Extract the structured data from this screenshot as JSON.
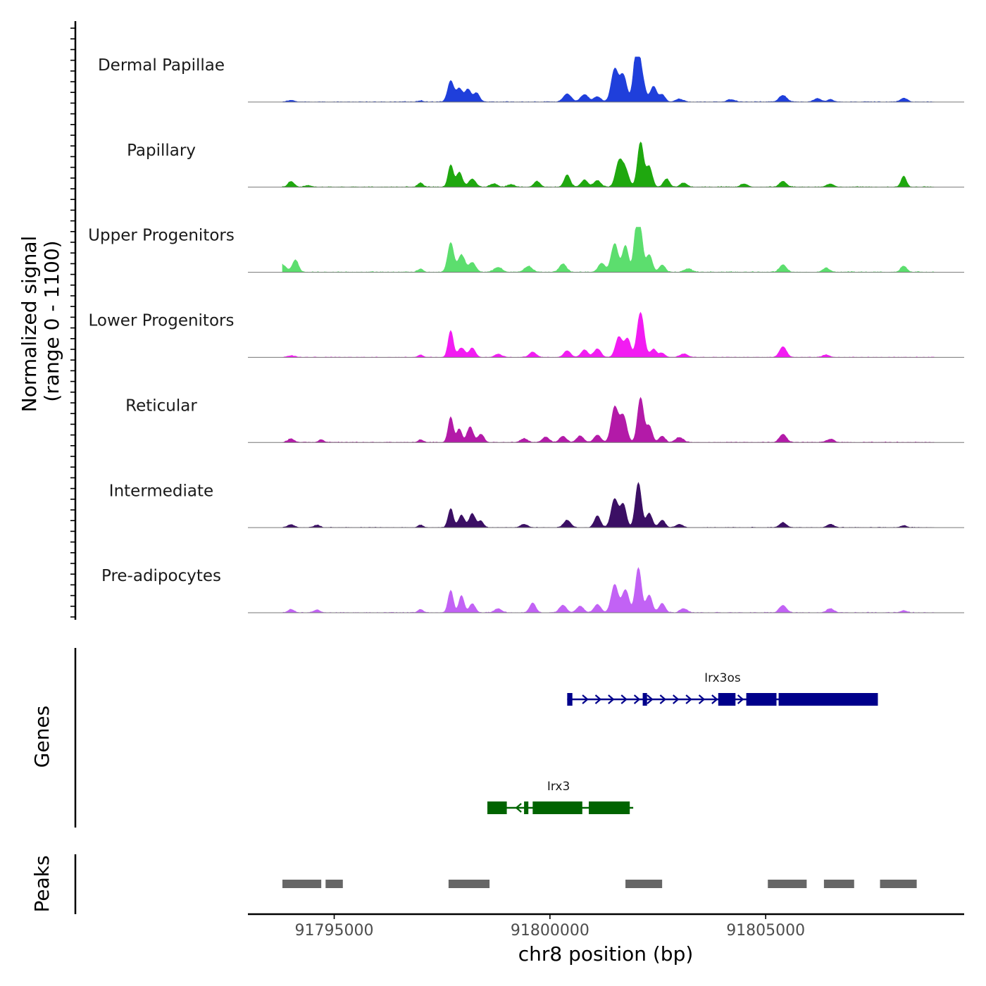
{
  "chart_data": {
    "type": "area",
    "chromosome": "chr8",
    "xlim": [
      91793000,
      91809600
    ],
    "xlabel": "chr8 position (bp)",
    "x_ticks": [
      91795000,
      91800000,
      91805000
    ],
    "x_tick_labels": [
      "91795000",
      "91800000",
      "91805000"
    ],
    "signal_panel": {
      "ylabel_line1": "Normalized signal",
      "ylabel_line2": "(range 0 - 1100)",
      "ylim": [
        0,
        1100
      ],
      "series": [
        {
          "name": "Dermal Papillae",
          "color": "#1f3fdb",
          "peaks": [
            [
              91794000,
              40,
              80
            ],
            [
              91797000,
              30,
              60
            ],
            [
              91797700,
              520,
              70
            ],
            [
              91797900,
              330,
              70
            ],
            [
              91798100,
              310,
              70
            ],
            [
              91798300,
              220,
              70
            ],
            [
              91800400,
              200,
              90
            ],
            [
              91800800,
              180,
              90
            ],
            [
              91801100,
              130,
              80
            ],
            [
              91801500,
              800,
              80
            ],
            [
              91801700,
              650,
              80
            ],
            [
              91802000,
              1000,
              70
            ],
            [
              91802100,
              700,
              90
            ],
            [
              91802400,
              380,
              70
            ],
            [
              91802600,
              180,
              70
            ],
            [
              91803000,
              70,
              90
            ],
            [
              91804200,
              60,
              90
            ],
            [
              91805400,
              160,
              90
            ],
            [
              91806200,
              80,
              90
            ],
            [
              91806500,
              60,
              70
            ],
            [
              91808200,
              90,
              80
            ]
          ],
          "noise": 18
        },
        {
          "name": "Papillary",
          "color": "#1fa80f",
          "peaks": [
            [
              91794000,
              140,
              70
            ],
            [
              91794400,
              40,
              70
            ],
            [
              91797000,
              100,
              60
            ],
            [
              91797700,
              540,
              60
            ],
            [
              91797900,
              360,
              70
            ],
            [
              91798200,
              200,
              80
            ],
            [
              91798700,
              80,
              80
            ],
            [
              91799100,
              60,
              80
            ],
            [
              91799700,
              140,
              70
            ],
            [
              91800400,
              300,
              70
            ],
            [
              91800800,
              170,
              80
            ],
            [
              91801100,
              160,
              80
            ],
            [
              91801600,
              600,
              80
            ],
            [
              91801750,
              400,
              80
            ],
            [
              91802100,
              1100,
              70
            ],
            [
              91802300,
              500,
              70
            ],
            [
              91802700,
              200,
              70
            ],
            [
              91803100,
              100,
              80
            ],
            [
              91804500,
              80,
              80
            ],
            [
              91805400,
              140,
              80
            ],
            [
              91806500,
              80,
              80
            ],
            [
              91808200,
              270,
              60
            ]
          ],
          "noise": 20
        },
        {
          "name": "Upper Progenitors",
          "color": "#5cde6e",
          "peaks": [
            [
              91793800,
              180,
              90
            ],
            [
              91794100,
              300,
              70
            ],
            [
              91797000,
              80,
              60
            ],
            [
              91797700,
              720,
              70
            ],
            [
              91797950,
              420,
              80
            ],
            [
              91798200,
              230,
              80
            ],
            [
              91798800,
              120,
              90
            ],
            [
              91799500,
              140,
              90
            ],
            [
              91800300,
              200,
              80
            ],
            [
              91801200,
              220,
              80
            ],
            [
              91801500,
              700,
              80
            ],
            [
              91801750,
              650,
              70
            ],
            [
              91802000,
              1000,
              60
            ],
            [
              91802100,
              900,
              60
            ],
            [
              91802300,
              430,
              70
            ],
            [
              91802600,
              180,
              70
            ],
            [
              91803200,
              80,
              90
            ],
            [
              91805400,
              180,
              80
            ],
            [
              91806400,
              100,
              80
            ],
            [
              91808200,
              150,
              70
            ]
          ],
          "noise": 24
        },
        {
          "name": "Lower Progenitors",
          "color": "#f21cf2",
          "peaks": [
            [
              91794000,
              40,
              80
            ],
            [
              91797000,
              60,
              60
            ],
            [
              91797700,
              650,
              60
            ],
            [
              91797950,
              230,
              80
            ],
            [
              91798200,
              230,
              70
            ],
            [
              91798800,
              80,
              80
            ],
            [
              91799600,
              130,
              80
            ],
            [
              91800400,
              160,
              80
            ],
            [
              91800800,
              180,
              80
            ],
            [
              91801100,
              210,
              80
            ],
            [
              91801600,
              500,
              80
            ],
            [
              91801800,
              450,
              70
            ],
            [
              91802100,
              1100,
              80
            ],
            [
              91802400,
              200,
              70
            ],
            [
              91802600,
              100,
              70
            ],
            [
              91803100,
              80,
              90
            ],
            [
              91805400,
              260,
              80
            ],
            [
              91806400,
              60,
              80
            ]
          ],
          "noise": 16
        },
        {
          "name": "Reticular",
          "color": "#b31aa8",
          "peaks": [
            [
              91794000,
              90,
              70
            ],
            [
              91794700,
              70,
              60
            ],
            [
              91797000,
              60,
              60
            ],
            [
              91797700,
              620,
              60
            ],
            [
              91797900,
              330,
              60
            ],
            [
              91798150,
              380,
              70
            ],
            [
              91798400,
              200,
              70
            ],
            [
              91799400,
              90,
              80
            ],
            [
              91799900,
              130,
              80
            ],
            [
              91800300,
              150,
              80
            ],
            [
              91800700,
              160,
              80
            ],
            [
              91801100,
              180,
              80
            ],
            [
              91801500,
              850,
              80
            ],
            [
              91801700,
              650,
              80
            ],
            [
              91802100,
              1100,
              70
            ],
            [
              91802300,
              400,
              70
            ],
            [
              91802600,
              150,
              70
            ],
            [
              91803000,
              120,
              90
            ],
            [
              91805400,
              200,
              80
            ],
            [
              91806500,
              80,
              80
            ]
          ],
          "noise": 20
        },
        {
          "name": "Intermediate",
          "color": "#3b0f64",
          "peaks": [
            [
              91794000,
              70,
              80
            ],
            [
              91794600,
              60,
              70
            ],
            [
              91797000,
              60,
              60
            ],
            [
              91797700,
              460,
              60
            ],
            [
              91797950,
              300,
              70
            ],
            [
              91798200,
              340,
              70
            ],
            [
              91798400,
              160,
              60
            ],
            [
              91799400,
              80,
              80
            ],
            [
              91800400,
              180,
              80
            ],
            [
              91801100,
              290,
              70
            ],
            [
              91801500,
              700,
              80
            ],
            [
              91801700,
              560,
              70
            ],
            [
              91802050,
              1100,
              70
            ],
            [
              91802300,
              350,
              70
            ],
            [
              91802600,
              180,
              70
            ],
            [
              91803000,
              80,
              80
            ],
            [
              91805400,
              120,
              80
            ],
            [
              91806500,
              80,
              80
            ],
            [
              91808200,
              50,
              70
            ]
          ],
          "noise": 16
        },
        {
          "name": "Pre-adipocytes",
          "color": "#c262f5",
          "peaks": [
            [
              91794000,
              80,
              70
            ],
            [
              91794600,
              70,
              70
            ],
            [
              91797000,
              80,
              60
            ],
            [
              91797700,
              540,
              60
            ],
            [
              91797950,
              420,
              60
            ],
            [
              91798200,
              220,
              70
            ],
            [
              91798800,
              100,
              80
            ],
            [
              91799600,
              240,
              70
            ],
            [
              91800300,
              180,
              80
            ],
            [
              91800700,
              160,
              80
            ],
            [
              91801100,
              200,
              80
            ],
            [
              91801500,
              680,
              80
            ],
            [
              91801750,
              560,
              80
            ],
            [
              91802050,
              1100,
              70
            ],
            [
              91802300,
              430,
              70
            ],
            [
              91802600,
              230,
              70
            ],
            [
              91803100,
              100,
              80
            ],
            [
              91805400,
              180,
              80
            ],
            [
              91806500,
              100,
              80
            ],
            [
              91808200,
              50,
              70
            ]
          ],
          "noise": 18
        }
      ]
    },
    "genes_panel": {
      "ylabel": "Genes",
      "genes": [
        {
          "name": "Irx3os",
          "strand": "+",
          "color": "#00008b",
          "start": 91800400,
          "end": 91807600,
          "exons": [
            [
              91800400,
              91800520
            ],
            [
              91802150,
              91802250
            ],
            [
              91803900,
              91804300
            ],
            [
              91804550,
              91805250
            ],
            [
              91805300,
              91807600
            ]
          ]
        },
        {
          "name": "Irx3",
          "strand": "-",
          "color": "#006400",
          "start": 91798550,
          "end": 91801930,
          "exons": [
            [
              91798550,
              91799000
            ],
            [
              91799400,
              91799500
            ],
            [
              91799600,
              91800750
            ],
            [
              91800900,
              91801850
            ]
          ]
        }
      ]
    },
    "peaks_panel": {
      "ylabel": "Peaks",
      "color": "#666666",
      "regions": [
        [
          91793800,
          91794700
        ],
        [
          91794800,
          91795200
        ],
        [
          91797650,
          91798600
        ],
        [
          91801750,
          91802600
        ],
        [
          91805050,
          91805950
        ],
        [
          91806350,
          91807050
        ],
        [
          91807650,
          91808500
        ]
      ]
    }
  }
}
